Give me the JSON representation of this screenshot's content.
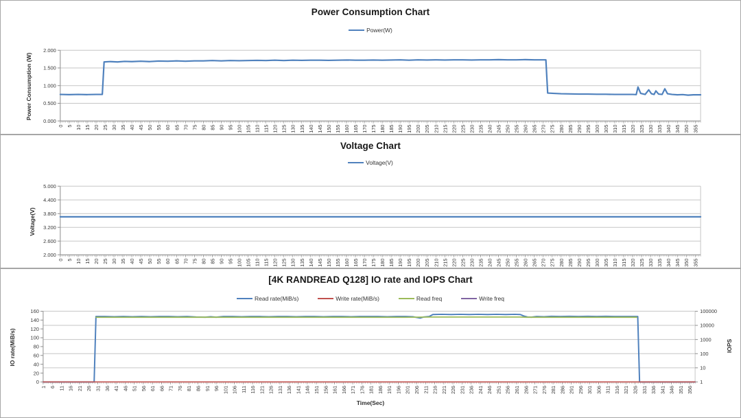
{
  "window": {
    "background": "#FFFFFF",
    "panel_border_color": "#A6A6A6"
  },
  "palette": {
    "blue": "#4F81BD",
    "red": "#C0504D",
    "green": "#9BBB59",
    "purple": "#8064A2",
    "gridline": "#C6C6C6",
    "axis_line": "#8E8E8E",
    "tick_text": "#3A3A3A"
  },
  "chart_data": [
    {
      "id": "power",
      "type": "line",
      "title": "Power Consumption Chart",
      "ylabel": "Power Consumption (W)",
      "xlabel": "",
      "legend_position": "top",
      "grid": "horizontal",
      "grid_from": "y",
      "x_range": [
        0,
        358
      ],
      "x_minor_step": 1,
      "x_tick_labels": [
        0,
        5,
        10,
        15,
        20,
        25,
        30,
        35,
        40,
        45,
        50,
        55,
        60,
        65,
        70,
        75,
        80,
        85,
        90,
        95,
        100,
        105,
        110,
        115,
        120,
        125,
        130,
        135,
        140,
        145,
        150,
        155,
        160,
        165,
        170,
        175,
        180,
        185,
        190,
        195,
        200,
        205,
        210,
        215,
        220,
        225,
        230,
        235,
        240,
        245,
        250,
        255,
        260,
        265,
        270,
        275,
        280,
        285,
        290,
        295,
        300,
        305,
        310,
        315,
        320,
        325,
        330,
        335,
        340,
        345,
        350,
        355
      ],
      "y_axis": {
        "min": 0,
        "max": 2,
        "tick_values": [
          0,
          0.5,
          1,
          1.5,
          2
        ],
        "tick_labels": [
          "0.000",
          "0.500",
          "1.000",
          "1.500",
          "2.000"
        ]
      },
      "series": [
        {
          "key": "power",
          "name": "Power(W)",
          "color": "#4F81BD",
          "width": 2.2,
          "axis": "y",
          "points": [
            [
              0,
              0.75
            ],
            [
              5,
              0.745
            ],
            [
              10,
              0.75
            ],
            [
              15,
              0.745
            ],
            [
              20,
              0.75
            ],
            [
              23.5,
              0.75
            ],
            [
              24.5,
              1.67
            ],
            [
              28,
              1.68
            ],
            [
              32,
              1.67
            ],
            [
              36,
              1.685
            ],
            [
              40,
              1.68
            ],
            [
              45,
              1.69
            ],
            [
              50,
              1.68
            ],
            [
              55,
              1.695
            ],
            [
              60,
              1.69
            ],
            [
              65,
              1.7
            ],
            [
              70,
              1.69
            ],
            [
              75,
              1.7
            ],
            [
              80,
              1.7
            ],
            [
              85,
              1.71
            ],
            [
              90,
              1.7
            ],
            [
              95,
              1.71
            ],
            [
              100,
              1.705
            ],
            [
              105,
              1.71
            ],
            [
              110,
              1.715
            ],
            [
              115,
              1.71
            ],
            [
              120,
              1.72
            ],
            [
              125,
              1.71
            ],
            [
              130,
              1.72
            ],
            [
              135,
              1.715
            ],
            [
              140,
              1.72
            ],
            [
              145,
              1.72
            ],
            [
              150,
              1.715
            ],
            [
              155,
              1.72
            ],
            [
              160,
              1.725
            ],
            [
              165,
              1.72
            ],
            [
              170,
              1.72
            ],
            [
              175,
              1.725
            ],
            [
              180,
              1.72
            ],
            [
              185,
              1.725
            ],
            [
              190,
              1.73
            ],
            [
              195,
              1.72
            ],
            [
              200,
              1.73
            ],
            [
              205,
              1.725
            ],
            [
              210,
              1.73
            ],
            [
              215,
              1.725
            ],
            [
              220,
              1.73
            ],
            [
              225,
              1.73
            ],
            [
              230,
              1.725
            ],
            [
              235,
              1.73
            ],
            [
              240,
              1.73
            ],
            [
              245,
              1.735
            ],
            [
              250,
              1.73
            ],
            [
              255,
              1.73
            ],
            [
              260,
              1.735
            ],
            [
              265,
              1.73
            ],
            [
              270,
              1.73
            ],
            [
              271.5,
              1.73
            ],
            [
              272.5,
              0.79
            ],
            [
              276,
              0.78
            ],
            [
              280,
              0.77
            ],
            [
              285,
              0.765
            ],
            [
              290,
              0.76
            ],
            [
              295,
              0.76
            ],
            [
              300,
              0.755
            ],
            [
              305,
              0.755
            ],
            [
              310,
              0.75
            ],
            [
              315,
              0.75
            ],
            [
              320,
              0.75
            ],
            [
              322,
              0.745
            ],
            [
              323,
              0.96
            ],
            [
              324.5,
              0.78
            ],
            [
              327,
              0.75
            ],
            [
              329,
              0.88
            ],
            [
              330.5,
              0.77
            ],
            [
              332,
              0.75
            ],
            [
              333,
              0.85
            ],
            [
              334.5,
              0.76
            ],
            [
              336.5,
              0.75
            ],
            [
              338,
              0.91
            ],
            [
              339.5,
              0.77
            ],
            [
              342,
              0.75
            ],
            [
              345,
              0.74
            ],
            [
              348,
              0.745
            ],
            [
              351,
              0.73
            ],
            [
              354,
              0.74
            ],
            [
              358,
              0.74
            ]
          ]
        }
      ]
    },
    {
      "id": "voltage",
      "type": "line",
      "title": "Voltage Chart",
      "ylabel": "Voltage(V)",
      "xlabel": "",
      "legend_position": "top",
      "grid": "horizontal",
      "grid_from": "y",
      "x_range": [
        0,
        358
      ],
      "x_minor_step": 1,
      "x_tick_labels": [
        0,
        5,
        10,
        15,
        20,
        25,
        30,
        35,
        40,
        45,
        50,
        55,
        60,
        65,
        70,
        75,
        80,
        85,
        90,
        95,
        100,
        105,
        110,
        115,
        120,
        125,
        130,
        135,
        140,
        145,
        150,
        155,
        160,
        165,
        170,
        175,
        180,
        185,
        190,
        195,
        200,
        205,
        210,
        215,
        220,
        225,
        230,
        235,
        240,
        245,
        250,
        255,
        260,
        265,
        270,
        275,
        280,
        285,
        290,
        295,
        300,
        305,
        310,
        315,
        320,
        325,
        330,
        335,
        340,
        345,
        350,
        355
      ],
      "y_axis": {
        "min": 2,
        "max": 5,
        "tick_values": [
          2,
          2.6,
          3.2,
          3.8,
          4.4,
          5
        ],
        "tick_labels": [
          "2.000",
          "2.600",
          "3.200",
          "3.800",
          "4.400",
          "5.000"
        ]
      },
      "series": [
        {
          "key": "voltage",
          "name": "Voltage(V)",
          "color": "#4F81BD",
          "width": 2.2,
          "axis": "y",
          "points": [
            [
              0,
              3.66
            ],
            [
              358,
              3.66
            ]
          ]
        }
      ]
    },
    {
      "id": "io",
      "type": "line",
      "title": "[4K RANDREAD Q128] IO rate and IOPS Chart",
      "ylabel": "IO rate(MiB/s)",
      "xlabel": "Time(Sec)",
      "legend_position": "top",
      "grid": "horizontal",
      "grid_from": "y2",
      "x_range": [
        1,
        359
      ],
      "x_minor_step": 1,
      "x_tick_labels": [
        1,
        6,
        11,
        16,
        21,
        26,
        31,
        36,
        41,
        46,
        51,
        56,
        61,
        66,
        71,
        76,
        81,
        86,
        91,
        96,
        101,
        106,
        111,
        116,
        121,
        126,
        131,
        136,
        141,
        146,
        151,
        156,
        161,
        166,
        171,
        176,
        181,
        186,
        191,
        196,
        201,
        206,
        211,
        216,
        221,
        226,
        231,
        236,
        241,
        246,
        251,
        256,
        261,
        266,
        271,
        276,
        281,
        286,
        291,
        296,
        301,
        306,
        311,
        316,
        321,
        326,
        331,
        336,
        341,
        346,
        351,
        356
      ],
      "y_axis": {
        "min": 0,
        "max": 160,
        "tick_values": [
          0,
          20,
          40,
          60,
          80,
          100,
          120,
          140,
          160
        ],
        "tick_labels": [
          "0",
          "20",
          "40",
          "60",
          "80",
          "100",
          "120",
          "140",
          "160"
        ]
      },
      "y2_axis": {
        "label": "IOPS",
        "scale": "log",
        "min": 1,
        "max": 100000,
        "tick_values": [
          1,
          10,
          100,
          1000,
          10000,
          100000
        ],
        "tick_labels": [
          "1",
          "10",
          "100",
          "1000",
          "10000",
          "100000"
        ]
      },
      "series": [
        {
          "key": "read-rate",
          "name": "Read rate(MiB/s)",
          "color": "#4F81BD",
          "width": 2.0,
          "axis": "y",
          "points": [
            [
              1,
              0
            ],
            [
              29,
              0
            ],
            [
              30,
              148
            ],
            [
              35,
              148
            ],
            [
              40,
              147.5
            ],
            [
              45,
              148
            ],
            [
              50,
              147.5
            ],
            [
              55,
              148
            ],
            [
              60,
              147.5
            ],
            [
              65,
              148
            ],
            [
              70,
              148
            ],
            [
              75,
              147.5
            ],
            [
              80,
              148
            ],
            [
              85,
              147
            ],
            [
              90,
              146.5
            ],
            [
              93,
              147.5
            ],
            [
              96,
              146.5
            ],
            [
              100,
              148
            ],
            [
              105,
              148
            ],
            [
              110,
              147.5
            ],
            [
              115,
              148
            ],
            [
              120,
              148
            ],
            [
              125,
              147.5
            ],
            [
              130,
              148
            ],
            [
              135,
              148
            ],
            [
              140,
              147.5
            ],
            [
              145,
              148
            ],
            [
              150,
              148
            ],
            [
              155,
              147.5
            ],
            [
              160,
              148
            ],
            [
              165,
              148
            ],
            [
              170,
              147.5
            ],
            [
              175,
              148
            ],
            [
              180,
              148
            ],
            [
              185,
              148
            ],
            [
              190,
              147.5
            ],
            [
              195,
              148
            ],
            [
              200,
              148
            ],
            [
              204,
              147.5
            ],
            [
              206,
              146
            ],
            [
              208,
              144.5
            ],
            [
              210,
              147
            ],
            [
              213,
              148
            ],
            [
              215,
              152.5
            ],
            [
              220,
              153
            ],
            [
              225,
              152.5
            ],
            [
              230,
              153
            ],
            [
              235,
              152.5
            ],
            [
              240,
              153
            ],
            [
              245,
              152.5
            ],
            [
              250,
              153
            ],
            [
              255,
              152.5
            ],
            [
              260,
              153
            ],
            [
              263,
              152.5
            ],
            [
              265,
              149
            ],
            [
              267,
              147
            ],
            [
              269,
              146.5
            ],
            [
              272,
              148
            ],
            [
              276,
              147.5
            ],
            [
              280,
              148.5
            ],
            [
              285,
              148
            ],
            [
              290,
              148.5
            ],
            [
              295,
              148
            ],
            [
              300,
              148.5
            ],
            [
              305,
              148
            ],
            [
              310,
              148.5
            ],
            [
              315,
              148
            ],
            [
              320,
              148
            ],
            [
              324,
              148
            ],
            [
              327.5,
              148
            ],
            [
              328.5,
              0
            ],
            [
              335,
              0
            ],
            [
              345,
              0
            ],
            [
              359,
              0
            ]
          ]
        },
        {
          "key": "write-rate",
          "name": "Write rate(MiB/s)",
          "color": "#C0504D",
          "width": 1.6,
          "axis": "y",
          "points": [
            [
              1,
              0
            ],
            [
              359,
              0
            ]
          ]
        },
        {
          "key": "read-freq",
          "name": "Read freq",
          "color": "#9BBB59",
          "width": 1.8,
          "axis": "y2",
          "points": [
            [
              30,
              37500
            ],
            [
              100,
              37600
            ],
            [
              200,
              37500
            ],
            [
              215,
              38800
            ],
            [
              263,
              38800
            ],
            [
              266,
              37600
            ],
            [
              327,
              37600
            ]
          ]
        },
        {
          "key": "write-freq",
          "name": "Write freq",
          "color": "#8064A2",
          "width": 1.6,
          "axis": "y2",
          "points": [
            [
              1,
              0
            ],
            [
              359,
              0
            ]
          ]
        }
      ]
    }
  ]
}
